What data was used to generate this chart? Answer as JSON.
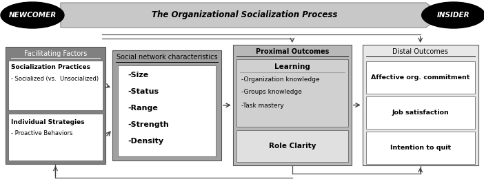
{
  "fig_width": 7.02,
  "fig_height": 2.7,
  "dpi": 100,
  "bg_color": "#ffffff",
  "newcomer_text": "NEWCOMER",
  "insider_text": "INSIDER",
  "process_text": "The Organizational Socialization Process",
  "box1_title": "Facilitating Factors",
  "box1_sub1_bold": "Socialization Practices",
  "box1_sub1_text": "- Socialized (vs.  Unsocialized)",
  "box1_sub2_bold": "Individual Strategies",
  "box1_sub2_text": "- Proactive Behaviors",
  "box1_bg": "#808080",
  "box1_inner_bg": "#ffffff",
  "box2_title": "Social network characteristics",
  "box2_items": [
    "-Size",
    "-Status",
    "-Range",
    "-Strength",
    "-Density"
  ],
  "box2_bg": "#a0a0a0",
  "box2_inner_bg": "#ffffff",
  "box3_title": "Proximal Outcomes",
  "box3_sub_title": "Learning",
  "box3_items": [
    "-Organization knowledge",
    "-Groups knowledge",
    "-Task mastery"
  ],
  "box3_sub2": "Role Clarity",
  "box3_bg": "#b8b8b8",
  "box3_upper_bg": "#d0d0d0",
  "box3_lower_bg": "#e0e0e0",
  "box4_title": "Distal Outcomes",
  "box4_items": [
    "Affective org. commitment",
    "Job satisfaction",
    "Intention to quit"
  ],
  "box4_bg": "#e8e8e8",
  "box4_item_bg": "#ffffff",
  "arrow_color": "#404040",
  "line_color": "#555555",
  "border_color": "#555555"
}
